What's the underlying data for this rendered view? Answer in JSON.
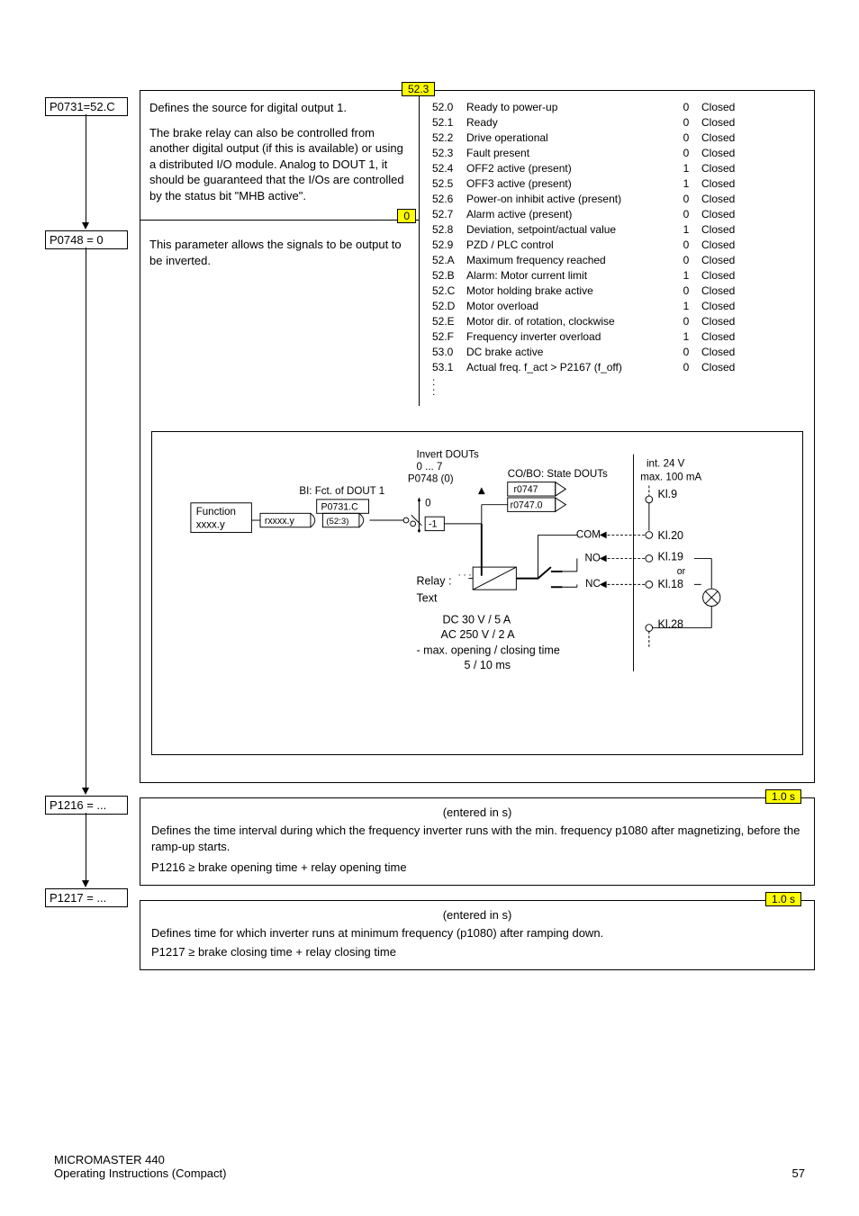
{
  "params": {
    "p0731": {
      "code": "P0731=52.C",
      "tag": "52.3",
      "desc1": "Defines the source for digital output 1.",
      "desc2": "The brake relay can also be controlled from another digital output (if this is available) or using a distributed I/O module. Analog to DOUT 1, it should be guaranteed that the I/Os are controlled by the status bit \"MHB active\"."
    },
    "p0748": {
      "code": "P0748 = 0",
      "tag": "0",
      "desc": "This parameter allows the signals to be output to be inverted."
    },
    "p1216": {
      "code": "P1216 = ...",
      "tag": "1.0 s",
      "unit": "(entered in s)",
      "desc": "Defines the time interval during which the frequency inverter runs with the min. frequency p1080 after magnetizing, before the ramp-up starts.",
      "rule": "P1216 ≥ brake opening time + relay opening time"
    },
    "p1217": {
      "code": "P1217 = ...",
      "tag": "1.0 s",
      "unit": "(entered in s)",
      "desc": "Defines time for which inverter runs at minimum frequency (p1080) after ramping down.",
      "rule": "P1217 ≥ brake closing time + relay closing time"
    }
  },
  "signals": [
    {
      "c": "52.0",
      "t": "Ready to power-up",
      "v": "0",
      "s": "Closed"
    },
    {
      "c": "52.1",
      "t": "Ready",
      "v": "0",
      "s": "Closed"
    },
    {
      "c": "52.2",
      "t": "Drive operational",
      "v": "0",
      "s": "Closed"
    },
    {
      "c": "52.3",
      "t": "Fault present",
      "v": "0",
      "s": "Closed"
    },
    {
      "c": "52.4",
      "t": "OFF2 active (present)",
      "v": "1",
      "s": "Closed"
    },
    {
      "c": "52.5",
      "t": "OFF3 active (present)",
      "v": "1",
      "s": "Closed"
    },
    {
      "c": "52.6",
      "t": "Power-on inhibit active (present)",
      "v": "0",
      "s": "Closed"
    },
    {
      "c": "52.7",
      "t": "Alarm active (present)",
      "v": "0",
      "s": "Closed"
    },
    {
      "c": "52.8",
      "t": "Deviation, setpoint/actual value",
      "v": "1",
      "s": "Closed"
    },
    {
      "c": "52.9",
      "t": "PZD / PLC control",
      "v": "0",
      "s": "Closed"
    },
    {
      "c": "52.A",
      "t": "Maximum frequency reached",
      "v": "0",
      "s": "Closed"
    },
    {
      "c": "52.B",
      "t": "Alarm: Motor current limit",
      "v": "1",
      "s": "Closed"
    },
    {
      "c": "52.C",
      "t": "Motor holding brake active",
      "v": "0",
      "s": "Closed"
    },
    {
      "c": "52.D",
      "t": "Motor overload",
      "v": "1",
      "s": "Closed"
    },
    {
      "c": "52.E",
      "t": "Motor dir. of rotation, clockwise",
      "v": "0",
      "s": "Closed"
    },
    {
      "c": "52.F",
      "t": "Frequency inverter overload",
      "v": "1",
      "s": "Closed"
    },
    {
      "c": "53.0",
      "t": "DC brake active",
      "v": "0",
      "s": "Closed"
    },
    {
      "c": "53.1",
      "t": "Actual freq. f_act >  P2167 (f_off)",
      "v": "0",
      "s": "Closed"
    }
  ],
  "diagram": {
    "title_top": "Invert DOUTs",
    "range": "0 ... 7",
    "p0748": "P0748 (0)",
    "bi_label": "BI: Fct. of DOUT 1",
    "p0731c": "P0731.C",
    "func_label": "Function",
    "xxxx": "xxxx.y",
    "rxxxx": "rxxxx.y",
    "bits": "(52:3)",
    "cobo": "CO/BO: State DOUTs",
    "r0747": "r0747",
    "r07470": "r0747.0",
    "relay": "Relay :",
    "text": "Text",
    "dc": "DC 30 V / 5 A",
    "ac": "AC 250 V / 2 A",
    "open": "- max. opening / closing time",
    "ms": "5 / 10 ms",
    "int24": "int. 24 V",
    "max100": "max. 100 mA",
    "kl9": "Kl.9",
    "kl20": "Kl.20",
    "kl19": "Kl.19",
    "kl18": "Kl.18",
    "kl28": "Kl.28",
    "com": "COM",
    "no": "NO",
    "nc": "NC",
    "or": "or"
  },
  "colors": {
    "yellow": "#ffff00",
    "black": "#000000",
    "bg": "#ffffff"
  },
  "footer": {
    "l1": "MICROMASTER 440",
    "l2": "Operating Instructions (Compact)",
    "page": "57"
  }
}
